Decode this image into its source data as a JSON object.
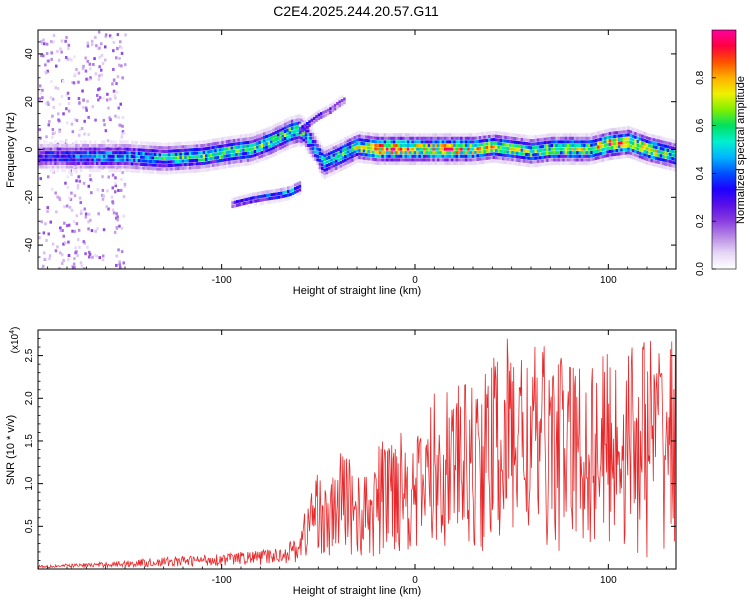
{
  "title": "C2E4.2025.244.20.57.G11",
  "colors": {
    "snr_line": "#e8282a",
    "spectrogram_background": "#ffffff",
    "colormap": [
      "#ffffff",
      "#e6d6f5",
      "#b98be6",
      "#8a3ee0",
      "#5a10e8",
      "#1e00ff",
      "#0050ff",
      "#00b4ff",
      "#00f0d0",
      "#00e060",
      "#80f000",
      "#f0f000",
      "#ffb000",
      "#ff5000",
      "#ff0040",
      "#ff00a0"
    ]
  },
  "chart_data": [
    {
      "type": "heatmap",
      "title": "C2E4.2025.244.20.57.G11",
      "xlabel": "Height of straight line (km)",
      "ylabel": "Frequency (Hz)",
      "xlim": [
        -195,
        135
      ],
      "ylim": [
        -50,
        50
      ],
      "xticks": [
        -100,
        0,
        100
      ],
      "xtick_labels": [
        "-100",
        "0",
        "100"
      ],
      "yticks": [
        -40,
        -20,
        0,
        20,
        40
      ],
      "ytick_labels": [
        "-40",
        "-20",
        "0",
        "20",
        "40"
      ],
      "colorbar": {
        "label": "Normalized spectral amplitude",
        "range": [
          0,
          1
        ],
        "ticks": [
          0.0,
          0.2,
          0.4,
          0.6,
          0.8
        ],
        "tick_labels": [
          "0.0",
          "0.2",
          "0.4",
          "0.6",
          "0.8"
        ]
      },
      "ridges": [
        {
          "name": "main",
          "x": [
            -195,
            -170,
            -150,
            -130,
            -110,
            -95,
            -85,
            -75,
            -65,
            -60,
            -57,
            -52,
            -48,
            -45,
            -40,
            -30,
            -20,
            -10,
            0,
            10,
            20,
            30,
            40,
            50,
            60,
            70,
            80,
            90,
            100,
            110,
            120,
            135
          ],
          "freq": [
            -3,
            -3,
            -3,
            -4,
            -3,
            -1,
            0,
            3,
            7,
            8,
            6,
            0,
            -6,
            -5,
            -3,
            1,
            0,
            0,
            0,
            0,
            0,
            0,
            1,
            0,
            -1,
            0,
            0,
            0,
            2,
            3,
            0,
            -3
          ],
          "amplitude": [
            0.3,
            0.4,
            0.45,
            0.5,
            0.55,
            0.6,
            0.55,
            0.55,
            0.6,
            0.6,
            0.45,
            0.45,
            0.55,
            0.5,
            0.55,
            0.6,
            0.8,
            0.85,
            0.7,
            0.7,
            0.8,
            0.7,
            0.65,
            0.6,
            0.6,
            0.6,
            0.65,
            0.6,
            0.8,
            0.7,
            0.7,
            0.5
          ]
        },
        {
          "name": "upper branch",
          "x": [
            -60,
            -55,
            -50,
            -45,
            -40,
            -36
          ],
          "freq": [
            8,
            11,
            14,
            16,
            19,
            21
          ],
          "amplitude": [
            0.3,
            0.3,
            0.25,
            0.25,
            0.2,
            0.2
          ]
        },
        {
          "name": "lower branch",
          "x": [
            -95,
            -85,
            -78,
            -70,
            -65,
            -60
          ],
          "freq": [
            -23,
            -21,
            -20,
            -19,
            -18,
            -16
          ],
          "amplitude": [
            0.25,
            0.35,
            0.4,
            0.45,
            0.5,
            0.55
          ]
        }
      ],
      "noise_band": {
        "x_range": [
          -195,
          -150
        ],
        "description": "scattered low-amplitude energy across all frequencies"
      }
    },
    {
      "type": "line",
      "xlabel": "Height of straight line (km)",
      "ylabel": "SNR (10 * v/v)",
      "y_scale_label": "(x10",
      "y_scale_exponent": "4",
      "xlim": [
        -195,
        135
      ],
      "ylim": [
        0,
        2.8
      ],
      "xticks": [
        -100,
        0,
        100
      ],
      "xtick_labels": [
        "-100",
        "0",
        "100"
      ],
      "yticks": [
        0.5,
        1.0,
        1.5,
        2.0,
        2.5
      ],
      "ytick_labels": [
        "0.5",
        "1.0",
        "1.5",
        "2.0",
        "2.5"
      ],
      "series": [
        {
          "name": "SNR",
          "x": [
            -195,
            -180,
            -160,
            -140,
            -120,
            -100,
            -90,
            -80,
            -70,
            -60,
            -55,
            -50,
            -45,
            -40,
            -35,
            -30,
            -25,
            -20,
            -10,
            0,
            10,
            20,
            30,
            40,
            50,
            60,
            70,
            80,
            90,
            100,
            110,
            120,
            135
          ],
          "upper": [
            0.05,
            0.06,
            0.08,
            0.12,
            0.15,
            0.18,
            0.2,
            0.22,
            0.25,
            0.4,
            0.9,
            1.25,
            0.85,
            1.35,
            1.45,
            1.15,
            1.1,
            1.4,
            1.85,
            1.5,
            2.1,
            2.15,
            2.2,
            2.5,
            2.8,
            2.6,
            2.65,
            2.5,
            2.45,
            2.6,
            2.65,
            2.8,
            2.75
          ],
          "lower": [
            0.01,
            0.01,
            0.02,
            0.02,
            0.03,
            0.04,
            0.05,
            0.05,
            0.06,
            0.08,
            0.1,
            0.2,
            0.05,
            0.1,
            0.2,
            0.05,
            0.1,
            0.05,
            0.15,
            0.2,
            0.15,
            0.3,
            0.1,
            0.2,
            0.2,
            0.25,
            0.2,
            0.15,
            0.2,
            0.15,
            0.2,
            0.1,
            0.3
          ]
        }
      ]
    }
  ]
}
